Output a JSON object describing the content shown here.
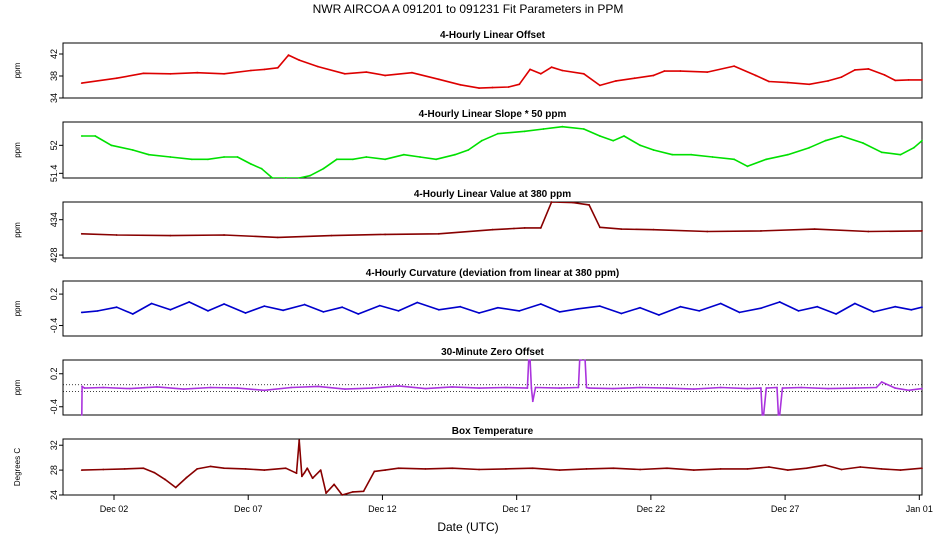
{
  "page": {
    "title": "NWR   AIRCOA A   091201 to 091231   Fit Parameters in PPM",
    "xlabel": "Date (UTC)"
  },
  "chart_data": {
    "type": "line",
    "x_axis": {
      "unit": "days",
      "range": [
        0,
        32
      ],
      "ticks": [
        {
          "x": 1.9,
          "label": "Dec 02"
        },
        {
          "x": 6.9,
          "label": "Dec 07"
        },
        {
          "x": 11.9,
          "label": "Dec 12"
        },
        {
          "x": 16.9,
          "label": "Dec 17"
        },
        {
          "x": 21.9,
          "label": "Dec 22"
        },
        {
          "x": 26.9,
          "label": "Dec 27"
        },
        {
          "x": 31.9,
          "label": "Jan 01"
        }
      ]
    },
    "panels": [
      {
        "title": "4-Hourly Linear Offset",
        "ylabel": "ppm",
        "ylim": [
          34,
          44
        ],
        "yticks": [
          34,
          38,
          42
        ],
        "color": "#dd0000",
        "style": "line",
        "x": [
          0.7,
          2,
          3,
          4,
          5,
          6,
          7,
          7.5,
          8,
          8.4,
          8.8,
          9.5,
          10.5,
          11.3,
          12,
          13,
          14,
          14.8,
          15.5,
          16,
          16.6,
          17,
          17.4,
          17.8,
          18.2,
          18.6,
          19.4,
          20,
          20.6,
          21.3,
          22,
          22.4,
          23,
          24,
          25,
          25.8,
          26.3,
          27,
          27.8,
          28.5,
          29,
          29.5,
          30,
          30.6,
          31,
          31.5,
          32
        ],
        "y": [
          36.7,
          37.6,
          38.5,
          38.4,
          38.6,
          38.4,
          39.0,
          39.2,
          39.5,
          41.8,
          40.9,
          39.7,
          38.4,
          38.7,
          38.1,
          38.6,
          37.4,
          36.4,
          35.8,
          35.9,
          36.0,
          36.5,
          39.2,
          38.4,
          39.6,
          39.0,
          38.4,
          36.3,
          37.1,
          37.6,
          38.1,
          38.9,
          38.9,
          38.7,
          39.8,
          38.1,
          37.0,
          36.8,
          36.5,
          37.1,
          37.8,
          39.1,
          39.3,
          38.2,
          37.2,
          37.3,
          37.3
        ]
      },
      {
        "title": "4-Hourly Linear Slope * 50 ppm",
        "ylabel": "ppm",
        "ylim": [
          51.3,
          52.5
        ],
        "yticks": [
          51.4,
          52.0
        ],
        "color": "#00e000",
        "style": "line",
        "x": [
          0.7,
          1.2,
          1.8,
          2.6,
          3.2,
          4,
          4.8,
          5.4,
          6,
          6.5,
          7,
          7.4,
          7.8,
          8.3,
          8.8,
          9.2,
          9.7,
          10.2,
          10.8,
          11.3,
          12,
          12.7,
          13.3,
          13.9,
          14.6,
          15.1,
          15.6,
          16.2,
          17.2,
          17.9,
          18.6,
          19.4,
          20,
          20.5,
          20.9,
          21.5,
          22,
          22.7,
          23.4,
          24.2,
          25,
          25.5,
          26.2,
          27,
          27.8,
          28.4,
          29,
          29.8,
          30.5,
          31.2,
          31.7,
          32
        ],
        "y": [
          52.2,
          52.2,
          52.0,
          51.9,
          51.8,
          51.75,
          51.7,
          51.7,
          51.75,
          51.75,
          51.6,
          51.5,
          51.3,
          51.3,
          51.3,
          51.35,
          51.5,
          51.7,
          51.7,
          51.75,
          51.7,
          51.8,
          51.75,
          51.7,
          51.8,
          51.9,
          52.1,
          52.25,
          52.3,
          52.35,
          52.4,
          52.35,
          52.2,
          52.1,
          52.2,
          52.0,
          51.9,
          51.8,
          51.8,
          51.75,
          51.7,
          51.55,
          51.7,
          51.8,
          51.95,
          52.1,
          52.2,
          52.05,
          51.85,
          51.8,
          51.95,
          52.1
        ]
      },
      {
        "title": "4-Hourly Linear Value at 380 ppm",
        "ylabel": "ppm",
        "ylim": [
          427.5,
          437
        ],
        "yticks": [
          428,
          434
        ],
        "color": "#880000",
        "style": "line",
        "x": [
          0.7,
          2,
          4,
          6,
          8,
          10,
          12,
          14,
          16,
          16.8,
          17.2,
          17.8,
          18.2,
          19,
          19.6,
          20,
          20.8,
          22,
          24,
          26,
          28,
          30,
          32
        ],
        "y": [
          431.6,
          431.4,
          431.3,
          431.4,
          431.0,
          431.3,
          431.5,
          431.6,
          432.3,
          432.5,
          432.6,
          432.6,
          437.0,
          436.9,
          436.5,
          432.7,
          432.4,
          432.3,
          432.0,
          432.1,
          432.4,
          432.0,
          432.1
        ]
      },
      {
        "title": "4-Hourly Curvature (deviation from linear at 380 ppm)",
        "ylabel": "ppm",
        "ylim": [
          -0.6,
          0.45
        ],
        "yticks": [
          -0.4,
          0.2
        ],
        "color": "#0000cc",
        "style": "line",
        "x": [
          0.7,
          1.3,
          2,
          2.6,
          3.3,
          4,
          4.7,
          5.4,
          6,
          6.8,
          7.5,
          8.2,
          9,
          9.7,
          10.4,
          11,
          11.8,
          12.5,
          13.2,
          14,
          14.8,
          15.5,
          16.2,
          17,
          17.8,
          18.5,
          19.2,
          20,
          20.8,
          21.5,
          22.2,
          23,
          23.7,
          24.5,
          25.2,
          26,
          26.7,
          27.4,
          28.1,
          28.8,
          29.5,
          30.2,
          31,
          31.6,
          32
        ],
        "y": [
          -0.15,
          -0.12,
          -0.05,
          -0.18,
          0.02,
          -0.1,
          0.05,
          -0.12,
          0.01,
          -0.16,
          -0.03,
          -0.11,
          0.0,
          -0.14,
          -0.05,
          -0.18,
          -0.02,
          -0.12,
          0.04,
          -0.1,
          -0.04,
          -0.16,
          -0.06,
          -0.12,
          0.01,
          -0.14,
          -0.08,
          -0.03,
          -0.17,
          -0.06,
          -0.2,
          -0.04,
          -0.12,
          0.02,
          -0.15,
          -0.07,
          0.05,
          -0.12,
          -0.04,
          -0.18,
          0.02,
          -0.14,
          -0.04,
          -0.1,
          -0.05
        ]
      },
      {
        "title": "30-Minute Zero Offset",
        "ylabel": "ppm",
        "ylim": [
          -0.55,
          0.45
        ],
        "yticks": [
          -0.4,
          0.2
        ],
        "color": "#aa33dd",
        "style": "line",
        "ref_lines": [
          0.0,
          -0.12
        ],
        "x": [
          0.7,
          0.71,
          0.8,
          1.5,
          2.5,
          3.5,
          4.5,
          5.5,
          6.5,
          7.5,
          8.5,
          9.5,
          10.5,
          11.5,
          12.5,
          13.5,
          14.5,
          15.5,
          16.5,
          17.3,
          17.35,
          17.4,
          17.45,
          17.5,
          17.6,
          18.5,
          19.2,
          19.25,
          19.3,
          19.45,
          19.5,
          19.6,
          20.5,
          21.5,
          22.5,
          23.5,
          24.5,
          25.5,
          26.0,
          26.05,
          26.1,
          26.2,
          26.6,
          26.65,
          26.7,
          26.8,
          27.5,
          28.5,
          29.5,
          30.3,
          30.5,
          31.0,
          31.5,
          32
        ],
        "y": [
          -0.55,
          -0.03,
          -0.06,
          -0.05,
          -0.07,
          -0.04,
          -0.08,
          -0.05,
          -0.06,
          -0.1,
          -0.05,
          -0.03,
          -0.08,
          -0.06,
          -0.02,
          -0.07,
          -0.04,
          -0.06,
          -0.05,
          -0.06,
          0.45,
          0.45,
          -0.06,
          -0.3,
          -0.05,
          -0.06,
          -0.05,
          0.45,
          0.45,
          0.45,
          -0.05,
          -0.06,
          -0.07,
          -0.05,
          -0.06,
          -0.08,
          -0.05,
          -0.07,
          -0.06,
          -0.55,
          -0.55,
          -0.06,
          -0.05,
          -0.55,
          -0.55,
          -0.06,
          -0.05,
          -0.07,
          -0.06,
          -0.05,
          0.05,
          -0.06,
          -0.1,
          -0.07
        ]
      },
      {
        "title": "Box Temperature",
        "ylabel": "Degrees C",
        "ylim": [
          24,
          33
        ],
        "yticks": [
          24,
          28,
          32
        ],
        "color": "#880000",
        "style": "line",
        "x": [
          0.7,
          1.5,
          2.3,
          3,
          3.4,
          3.8,
          4.2,
          4.6,
          5,
          5.5,
          6,
          6.8,
          7.5,
          8.3,
          8.7,
          8.8,
          8.9,
          9.0,
          9.1,
          9.3,
          9.6,
          9.8,
          10.1,
          10.4,
          10.8,
          11.2,
          11.6,
          12,
          12.5,
          13.5,
          14.5,
          15.5,
          16.5,
          17.5,
          18.5,
          19.5,
          20.5,
          21.5,
          22.5,
          23.5,
          24.5,
          25.5,
          26.3,
          27,
          27.7,
          28.4,
          29,
          29.7,
          30.5,
          31.2,
          32
        ],
        "y": [
          28.0,
          28.1,
          28.2,
          28.3,
          27.6,
          26.5,
          25.2,
          26.8,
          28.2,
          28.6,
          28.3,
          28.2,
          28.0,
          28.3,
          27.5,
          32.8,
          27.0,
          27.6,
          28.3,
          26.7,
          28.0,
          24.3,
          25.7,
          24.0,
          24.5,
          24.6,
          27.8,
          28.0,
          28.3,
          28.2,
          28.3,
          28.1,
          28.2,
          28.3,
          28.0,
          28.2,
          28.3,
          28.1,
          28.3,
          28.0,
          28.2,
          28.2,
          28.5,
          28.0,
          28.3,
          28.8,
          28.1,
          28.5,
          28.2,
          28.0,
          28.3
        ]
      }
    ]
  }
}
